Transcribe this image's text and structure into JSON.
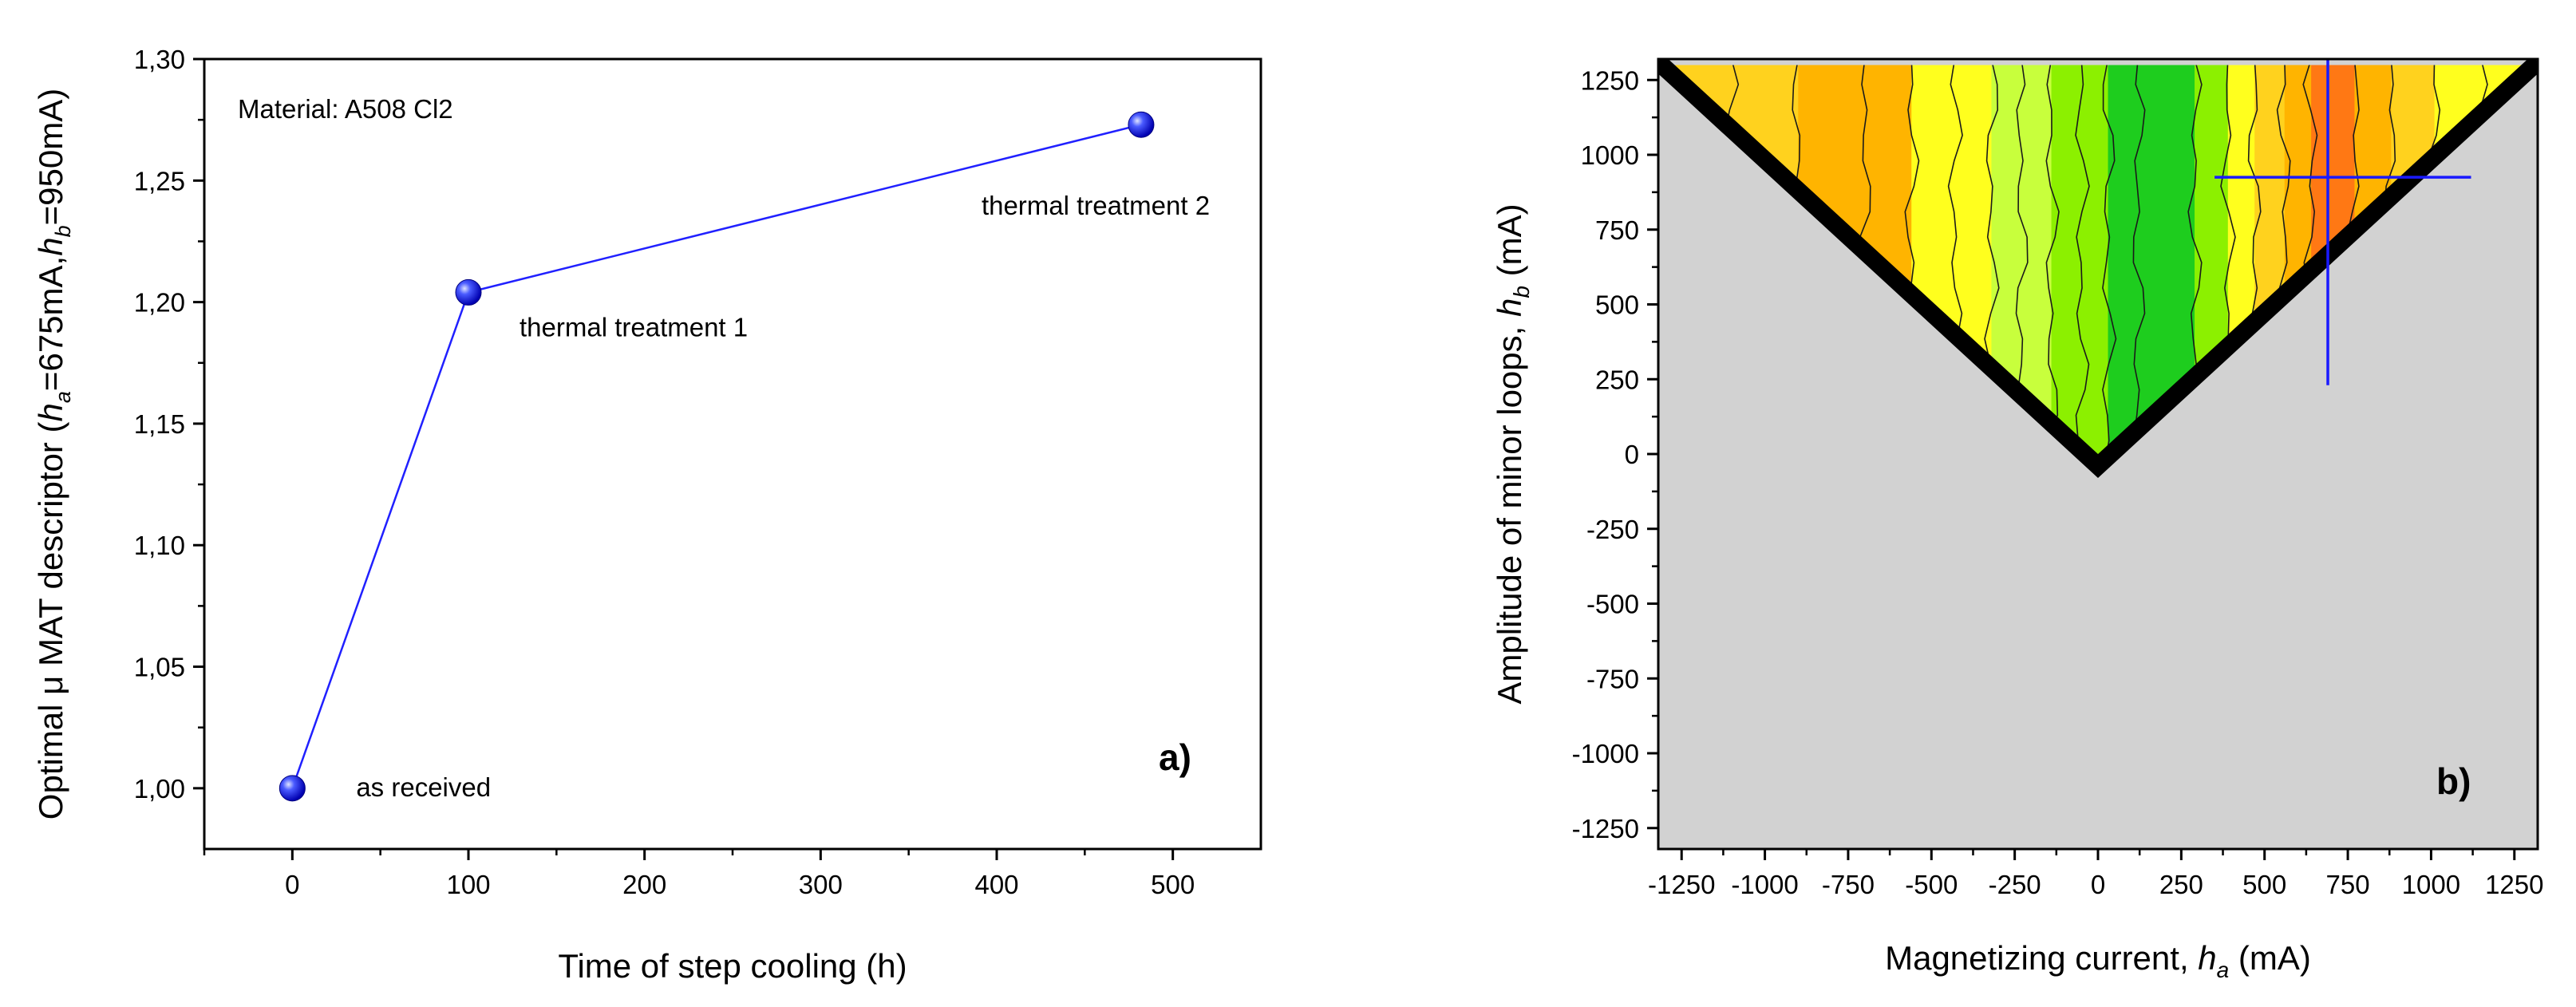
{
  "chart_data": [
    {
      "type": "line",
      "title": "",
      "panel_label": "a)",
      "material_note": "Material: A508 Cl2",
      "xlabel": "Time of step cooling (h)",
      "ylabel": {
        "prefix": "Optimal μ MAT descriptor (",
        "h1": "h",
        "s1": "a",
        "mid": "=675mA,",
        "h2": "h",
        "s2": "b",
        "suffix": "=950mA)"
      },
      "xlim": [
        -50,
        550
      ],
      "ylim": [
        0.975,
        1.3
      ],
      "xticks": [
        0,
        100,
        200,
        300,
        400,
        500
      ],
      "xtick_labels": [
        "0",
        "100",
        "200",
        "300",
        "400",
        "500"
      ],
      "yticks": [
        1.0,
        1.05,
        1.1,
        1.15,
        1.2,
        1.25,
        1.3
      ],
      "ytick_labels": [
        "1,00",
        "1,05",
        "1,10",
        "1,15",
        "1,20",
        "1,25",
        "1,30"
      ],
      "series": [
        {
          "name": "A508 Cl2",
          "color": "#1f1fff",
          "points": [
            {
              "x": 0,
              "y": 1.0,
              "label": "as received"
            },
            {
              "x": 100,
              "y": 1.204,
              "label": "thermal treatment 1"
            },
            {
              "x": 482,
              "y": 1.273,
              "label": "thermal treatment 2"
            }
          ]
        }
      ]
    },
    {
      "type": "heatmap",
      "title": "",
      "panel_label": "b)",
      "xlabel": {
        "prefix": "Magnetizing current, ",
        "h": "h",
        "sub": "a",
        "suffix": "  (mA)"
      },
      "ylabel": {
        "prefix": "Amplitude of minor loops, ",
        "h": "h",
        "sub": "b",
        "suffix": "  (mA)"
      },
      "xlim": [
        -1320,
        1320
      ],
      "ylim": [
        -1320,
        1320
      ],
      "xticks": [
        -1250,
        -1000,
        -750,
        -500,
        -250,
        0,
        250,
        500,
        750,
        1000,
        1250
      ],
      "xtick_labels": [
        "-1250",
        "-1000",
        "-750",
        "-500",
        "-250",
        "0",
        "250",
        "500",
        "750",
        "1000",
        "1250"
      ],
      "yticks": [
        -1250,
        -1000,
        -750,
        -500,
        -250,
        0,
        250,
        500,
        750,
        1000,
        1250
      ],
      "ytick_labels": [
        "-1250",
        "-1000",
        "-750",
        "-500",
        "-250",
        "0",
        "250",
        "500",
        "750",
        "1000",
        "1250"
      ],
      "background_color": "#d2d2d2",
      "crosshair": {
        "x": 690,
        "y": 925,
        "x_span": [
          350,
          1120
        ],
        "y_span": [
          230,
          1420
        ],
        "color": "#1a1aff"
      },
      "contour_bands": [
        {
          "x0": -1320,
          "x1": -900,
          "color": "#ffd21e"
        },
        {
          "x0": -900,
          "x1": -560,
          "color": "#ffb400"
        },
        {
          "x0": -560,
          "x1": -320,
          "color": "#ffff1e"
        },
        {
          "x0": -320,
          "x1": -140,
          "color": "#c8ff3c"
        },
        {
          "x0": -140,
          "x1": 30,
          "color": "#8cf000"
        },
        {
          "x0": 30,
          "x1": 290,
          "color": "#1ecd1e"
        },
        {
          "x0": 290,
          "x1": 390,
          "color": "#8cf000"
        },
        {
          "x0": 390,
          "x1": 470,
          "color": "#ffff1e"
        },
        {
          "x0": 470,
          "x1": 560,
          "color": "#ffd21e"
        },
        {
          "x0": 560,
          "x1": 640,
          "color": "#ffb400"
        },
        {
          "x0": 640,
          "x1": 770,
          "color": "#ff7814"
        },
        {
          "x0": 770,
          "x1": 880,
          "color": "#ffb400"
        },
        {
          "x0": 880,
          "x1": 1010,
          "color": "#ffd21e"
        },
        {
          "x0": 1010,
          "x1": 1320,
          "color": "#ffff1e"
        }
      ],
      "contour_levels_x": [
        -1100,
        -900,
        -700,
        -560,
        -430,
        -320,
        -230,
        -140,
        -50,
        30,
        120,
        290,
        390,
        470,
        560,
        640,
        770,
        880,
        1010,
        1150
      ]
    }
  ]
}
